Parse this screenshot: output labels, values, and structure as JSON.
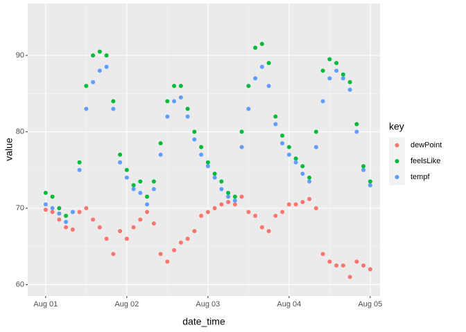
{
  "chart_data": {
    "type": "scatter",
    "x_label": "date_time",
    "y_label": "value",
    "legend_title": "key",
    "x": [
      0,
      2,
      4,
      6,
      8,
      10,
      12,
      14,
      16,
      18,
      20,
      22,
      24,
      26,
      28,
      30,
      32,
      34,
      36,
      38,
      40,
      42,
      44,
      46,
      48,
      50,
      52,
      54,
      56,
      58,
      60,
      62,
      64,
      66,
      68,
      70,
      72,
      74,
      76,
      78,
      80,
      82,
      84,
      86,
      88,
      90,
      92,
      94,
      96
    ],
    "xlim": [
      -5.3,
      98.9
    ],
    "xticks": [
      {
        "value": 0,
        "label": "Aug 01"
      },
      {
        "value": 24,
        "label": "Aug 02"
      },
      {
        "value": 48,
        "label": "Aug 03"
      },
      {
        "value": 72,
        "label": "Aug 04"
      },
      {
        "value": 96,
        "label": "Aug 05"
      }
    ],
    "ylim": [
      58.5,
      96.8
    ],
    "yticks": [
      60,
      70,
      80,
      90
    ],
    "grid": true,
    "legend": "right",
    "series": [
      {
        "name": "dewPoint",
        "color": "#F8766D",
        "values": [
          69.8,
          69.5,
          68.5,
          67.5,
          67.2,
          69.5,
          70,
          68.5,
          67.5,
          66,
          64,
          67,
          66,
          67.5,
          68.5,
          69.5,
          68,
          64,
          63,
          64.5,
          65.5,
          66,
          67,
          69,
          69.5,
          70,
          70.5,
          70.8,
          70.5,
          71.5,
          69.5,
          69,
          67.5,
          67,
          69,
          69.5,
          70.5,
          70.5,
          70.8,
          71.2,
          70,
          64,
          63,
          62.5,
          62.5,
          61,
          63,
          62.5,
          62
        ]
      },
      {
        "name": "feelsLike",
        "color": "#00BA38",
        "values": [
          72,
          71.5,
          70,
          69,
          69.5,
          76,
          86,
          90,
          90.5,
          90,
          84,
          77,
          75,
          73,
          73.5,
          71.5,
          73.5,
          78.5,
          84,
          86,
          86,
          83,
          80,
          78,
          76,
          74.5,
          73.5,
          72,
          71.5,
          80,
          86,
          91,
          91.5,
          89,
          82,
          79.5,
          78,
          76.5,
          75.5,
          74,
          80,
          88,
          89.5,
          89,
          87.5,
          86.5,
          81,
          75.5,
          73.5
        ]
      },
      {
        "name": "tempf",
        "color": "#619CFF",
        "values": [
          70.5,
          70,
          69.3,
          68.2,
          69.5,
          75,
          83,
          86.5,
          88,
          88.5,
          83,
          76,
          74,
          72.5,
          72,
          70.5,
          72.5,
          77,
          82,
          84,
          84.5,
          82,
          79,
          77,
          75.5,
          74,
          72.5,
          71.5,
          71,
          78,
          83,
          87,
          88.5,
          86,
          81,
          78.5,
          77,
          76,
          74.5,
          73.5,
          78,
          84,
          87,
          88,
          87,
          85.5,
          80,
          75,
          73
        ]
      }
    ]
  }
}
